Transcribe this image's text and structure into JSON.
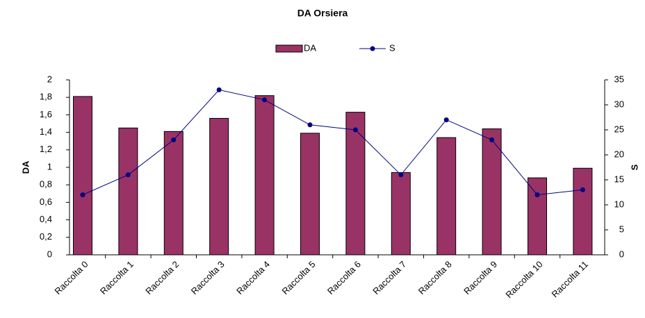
{
  "chart_data": {
    "type": "bar",
    "title": "DA Orsiera",
    "categories": [
      "Raccolta 0",
      "Raccolta 1",
      "Raccolta 2",
      "Raccolta 3",
      "Raccolta 4",
      "Raccolta 5",
      "Raccolta 6",
      "Raccolta 7",
      "Raccolta 8",
      "Raccolta 9",
      "Raccolta 10",
      "Raccolta 11"
    ],
    "series": [
      {
        "name": "DA",
        "type": "bar",
        "color": "#993366",
        "values": [
          1.81,
          1.45,
          1.41,
          1.56,
          1.82,
          1.39,
          1.63,
          0.94,
          1.34,
          1.44,
          0.88,
          0.99
        ]
      },
      {
        "name": "S",
        "type": "line",
        "axis": "y2",
        "color": "#000080",
        "values": [
          12,
          16,
          23,
          33,
          31,
          26,
          25,
          16,
          27,
          23,
          12,
          13
        ]
      }
    ],
    "ylabel": "DA",
    "y2label": "S",
    "ylim": [
      0,
      2
    ],
    "yticks": [
      0,
      {
        "value": 0.2,
        "label": "0,2"
      },
      {
        "value": 0.4,
        "label": "0,4"
      },
      {
        "value": 0.6,
        "label": "0,6"
      },
      {
        "value": 0.8,
        "label": "0,8"
      },
      1,
      {
        "value": 1.2,
        "label": "1,2"
      },
      {
        "value": 1.4,
        "label": "1,4"
      },
      {
        "value": 1.6,
        "label": "1,6"
      },
      {
        "value": 1.8,
        "label": "1,8"
      },
      2
    ],
    "y2lim": [
      0,
      35
    ],
    "y2ticks": [
      0,
      5,
      10,
      15,
      20,
      25,
      30,
      35
    ],
    "legend": "top"
  }
}
